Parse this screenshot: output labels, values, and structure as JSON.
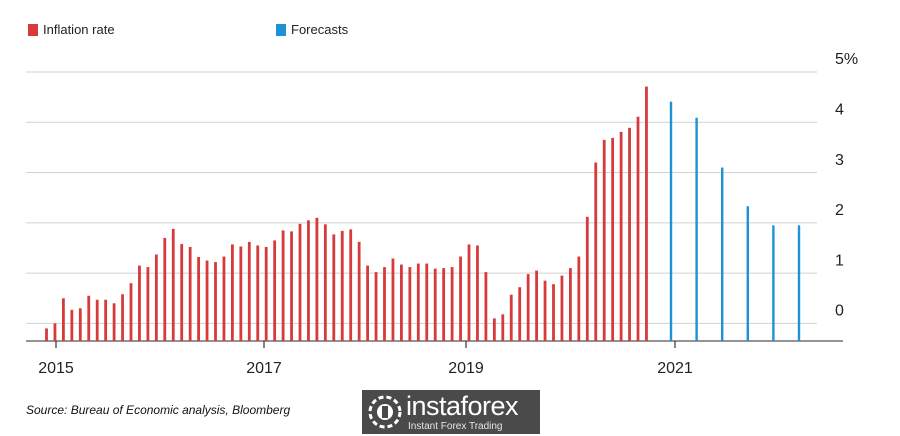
{
  "chart_data": {
    "type": "bar",
    "title": "",
    "xlabel": "",
    "ylabel": "",
    "ylim": [
      -0.35,
      5.0
    ],
    "y_ticks": [
      {
        "value": 5,
        "label": "5%"
      },
      {
        "value": 4,
        "label": "4"
      },
      {
        "value": 3,
        "label": "3"
      },
      {
        "value": 2,
        "label": "2"
      },
      {
        "value": 1,
        "label": "1"
      },
      {
        "value": 0,
        "label": "0"
      }
    ],
    "x_ticks": [
      "2015",
      "2017",
      "2019",
      "2021"
    ],
    "grid": true,
    "legend_position": "top-left",
    "series": [
      {
        "name": "Inflation rate",
        "color": "#d63a3a",
        "values": [
          -0.1,
          0.0,
          0.5,
          0.27,
          0.3,
          0.55,
          0.47,
          0.47,
          0.4,
          0.58,
          0.8,
          1.15,
          1.12,
          1.37,
          1.7,
          1.88,
          1.58,
          1.52,
          1.32,
          1.25,
          1.22,
          1.33,
          1.57,
          1.53,
          1.62,
          1.55,
          1.52,
          1.65,
          1.85,
          1.83,
          1.98,
          2.05,
          2.1,
          1.97,
          1.77,
          1.84,
          1.87,
          1.62,
          1.15,
          1.02,
          1.12,
          1.29,
          1.17,
          1.12,
          1.19,
          1.19,
          1.09,
          1.1,
          1.12,
          1.33,
          1.57,
          1.55,
          1.02,
          0.1,
          0.18,
          0.57,
          0.72,
          0.98,
          1.05,
          0.85,
          0.78,
          0.95,
          1.1,
          1.33,
          2.12,
          3.2,
          3.65,
          3.69,
          3.81,
          3.89,
          4.11,
          4.71
        ]
      },
      {
        "name": "Forecasts",
        "color": "#1f91d6",
        "values": [
          4.41,
          4.09,
          3.1,
          2.33,
          1.95,
          1.95
        ]
      }
    ]
  },
  "source_text": "Source: Bureau of Economic analysis, Bloomberg",
  "logo": {
    "name": "instaforex",
    "tagline": "Instant Forex Trading"
  }
}
